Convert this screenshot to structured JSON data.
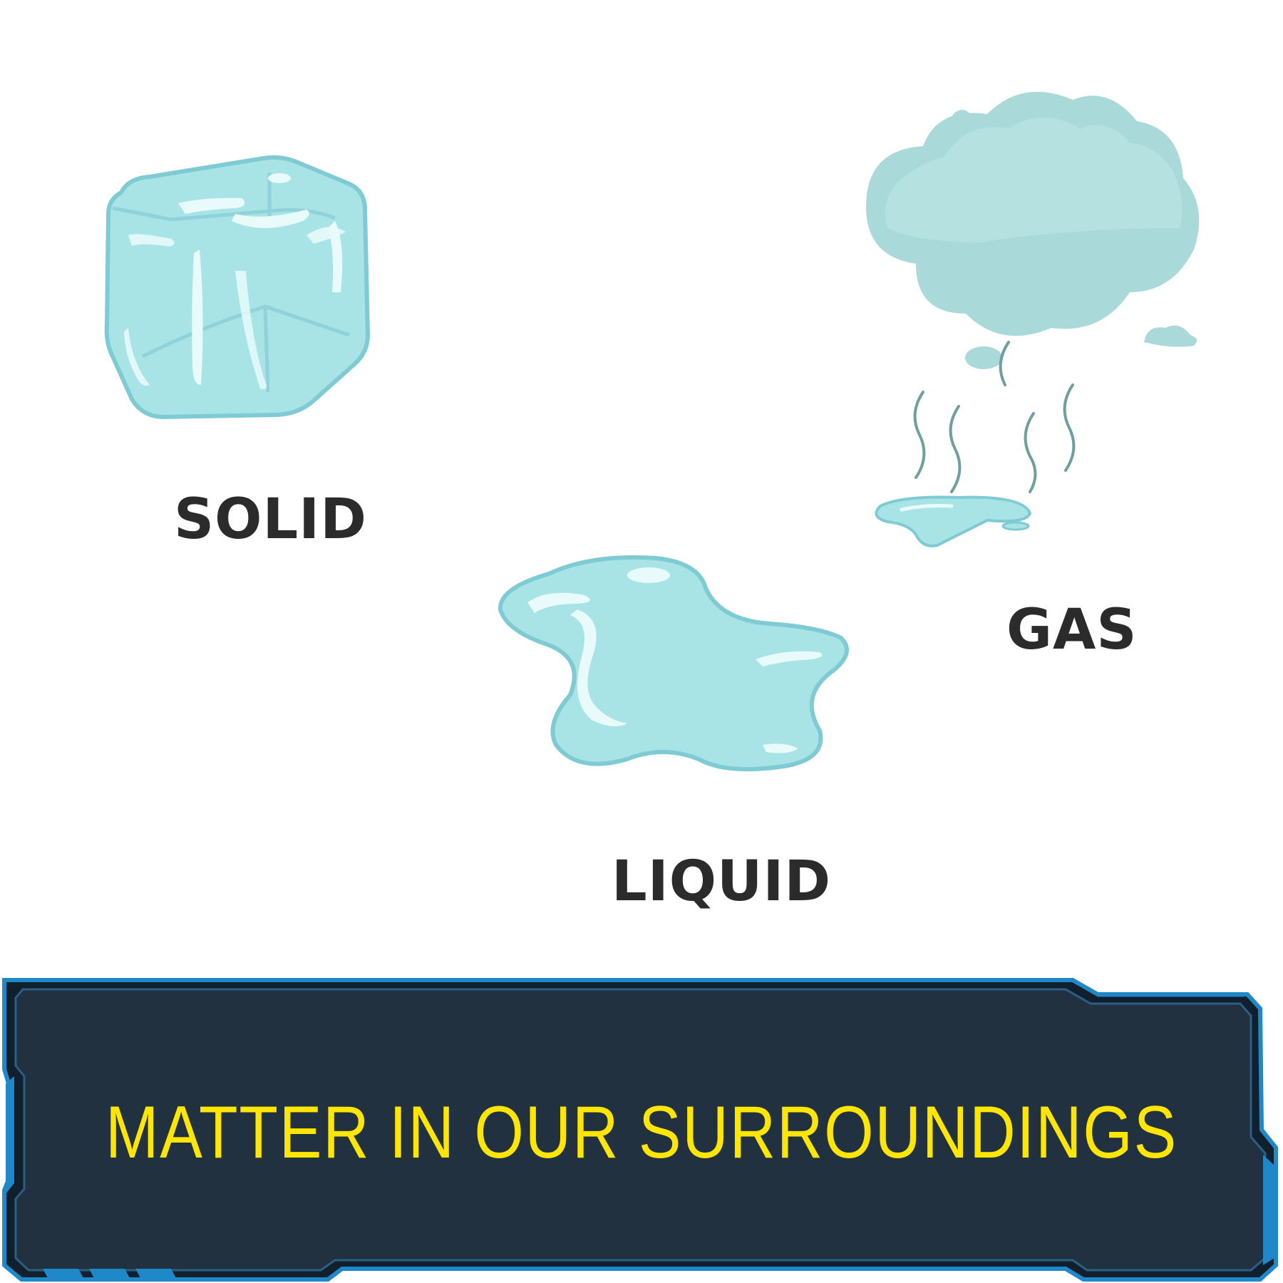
{
  "states": {
    "solid": {
      "label": "SOLID",
      "icon": "ice-cube-icon"
    },
    "liquid": {
      "label": "LIQUID",
      "icon": "water-puddle-icon"
    },
    "gas": {
      "label": "GAS",
      "icon": "steam-cloud-icon"
    }
  },
  "banner": {
    "title": "MATTER IN OUR SURROUNDINGS",
    "title_color": "#ffe600",
    "background_color": "#22313f",
    "frame_color": "#1e88c8"
  },
  "colors": {
    "water_fill": "#a8e3e6",
    "water_edge": "#7fcbd3",
    "cloud_fill": "#a9d9d9",
    "label_text": "#2b2b2b"
  }
}
